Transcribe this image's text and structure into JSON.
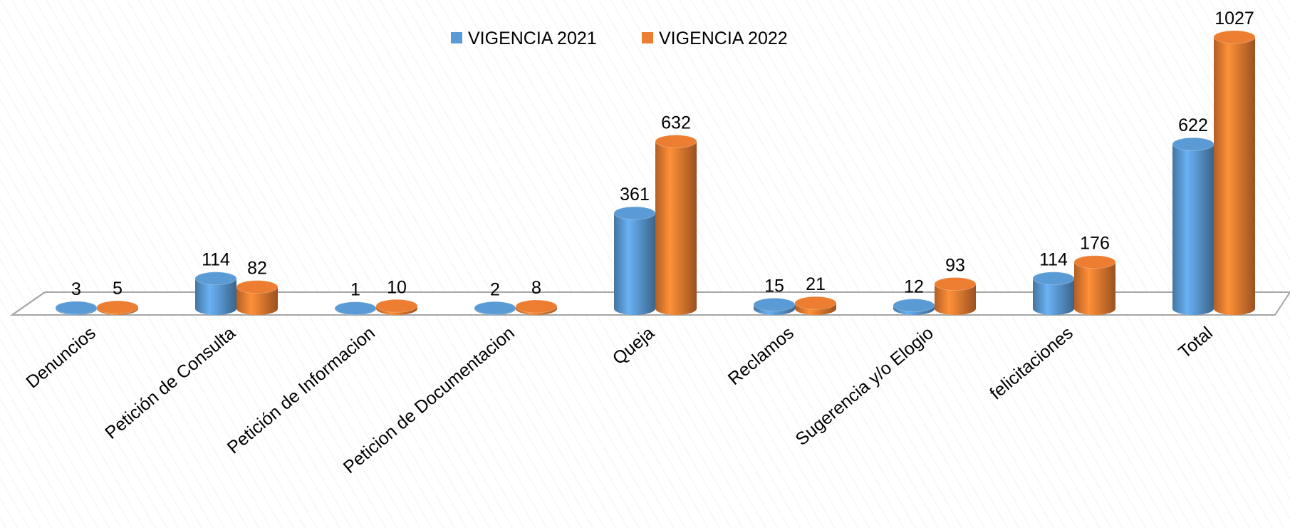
{
  "chart_data": {
    "type": "bar3d",
    "categories": [
      "Denuncios",
      "Petición de Consulta",
      "Petición de Informacion",
      "Peticion de Documentacion",
      "Queja",
      "Reclamos",
      "Sugerencia y/o Elogio",
      "felicitaciones",
      "Total"
    ],
    "series": [
      {
        "name": "VIGENCIA 2021",
        "color": "#5b9bd5",
        "values": [
          3,
          114,
          1,
          2,
          361,
          15,
          12,
          114,
          622
        ]
      },
      {
        "name": "VIGENCIA 2022",
        "color": "#ed7d31",
        "values": [
          5,
          82,
          10,
          8,
          632,
          21,
          93,
          176,
          1027
        ]
      }
    ],
    "legend": "top"
  }
}
